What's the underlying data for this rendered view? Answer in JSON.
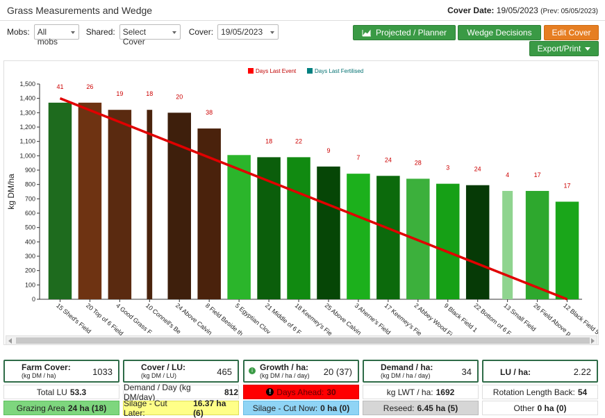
{
  "header": {
    "title": "Grass Measurements and Wedge",
    "cover_date_label": "Cover Date:",
    "cover_date_value": "19/05/2023",
    "prev_date": "(Prev: 05/05/2023)"
  },
  "filters": {
    "mobs_label": "Mobs:",
    "mobs_value": "All mobs",
    "shared_label": "Shared:",
    "shared_value": "Select Cover",
    "cover_label": "Cover:",
    "cover_value": "19/05/2023"
  },
  "buttons": {
    "projected": "Projected / Planner",
    "wedge": "Wedge Decisions",
    "edit_cover": "Edit Cover",
    "export": "Export/Print"
  },
  "chart_data": {
    "type": "bar",
    "ylabel": "kg DM/ha",
    "ylim": [
      0,
      1500
    ],
    "yticks": [
      0,
      100,
      200,
      300,
      400,
      500,
      600,
      700,
      800,
      900,
      "1,000",
      "1,100",
      "1,200",
      "1,300",
      "1,400",
      "1,500"
    ],
    "legend": [
      "Days Last Event",
      "Days Last Fertilised"
    ],
    "legend_colors": [
      "#ff0000",
      "#008080"
    ],
    "categories": [
      "15 Shed's Field",
      "20 Top of 6 Field",
      "4 Good Grass F",
      "10 Connell's Be",
      "24 Above Calvin",
      "8 Field Beside th",
      "5 Egyptian Clov",
      "21 Middle of 6 F",
      "18 Keemey's Fie",
      "25 Above Calvin",
      "3 Aherne's Field",
      "17 Keemey's Fie",
      "2 Abbey Wood Fi",
      "9 Black Field 1",
      "22 Bottom of 6 F",
      "13 Small Field",
      "26 Field Above p",
      "12 Black Field 5"
    ],
    "values": [
      1370,
      1370,
      1320,
      1320,
      1300,
      1190,
      1005,
      990,
      990,
      925,
      875,
      860,
      840,
      805,
      795,
      755,
      755,
      680
    ],
    "days_labels": [
      "41",
      "26",
      "19",
      "18",
      "20",
      "38",
      "",
      "18",
      "22",
      "9",
      "7",
      "24",
      "28",
      "3",
      "24",
      "4",
      "17",
      "17"
    ],
    "colors": [
      "#1e6b1e",
      "#6e3312",
      "#5a2a10",
      "#4a230d",
      "#3e1f0c",
      "#4a220c",
      "#2bb52b",
      "#0b5e0b",
      "#118a11",
      "#064606",
      "#1cb01c",
      "#0c6a0c",
      "#3cb03c",
      "#16a016",
      "#063a06",
      "#8fd48f",
      "#2ea82e",
      "#1aa61a"
    ],
    "wedge_line": {
      "start": 1400,
      "end": 0,
      "color": "#e00000"
    }
  },
  "stats": {
    "farm_cover_label": "Farm Cover:",
    "farm_cover_unit": "(kg DM / ha)",
    "farm_cover_value": "1033",
    "cover_lu_label": "Cover / LU:",
    "cover_lu_unit": "(kg DM / LU)",
    "cover_lu_value": "465",
    "growth_label": "Growth / ha:",
    "growth_unit": "(kg DM / ha / day)",
    "growth_value": "20 (37)",
    "demand_label": "Demand / ha:",
    "demand_unit": "(kg DM / ha / day)",
    "demand_value": "34",
    "lu_ha_label": "LU / ha:",
    "lu_ha_value": "2.22",
    "total_lu_label": "Total LU",
    "total_lu_value": "53.3",
    "demand_day_label": "Demand / Day (kg DM/day)",
    "demand_day_value": "812",
    "days_ahead_label": "Days Ahead:",
    "days_ahead_value": "30",
    "kg_lwt_label": "kg LWT / ha:",
    "kg_lwt_value": "1692",
    "rotation_label": "Rotation Length Back:",
    "rotation_value": "54",
    "grazing_label": "Grazing Area",
    "grazing_value": "24 ha (18)",
    "silage_later_label": "Silage - Cut Later:",
    "silage_later_value": "16.37 ha (6)",
    "silage_now_label": "Silage - Cut Now:",
    "silage_now_value": "0 ha (0)",
    "reseed_label": "Reseed:",
    "reseed_value": "6.45 ha (5)",
    "other_label": "Other",
    "other_value": "0 ha (0)"
  }
}
